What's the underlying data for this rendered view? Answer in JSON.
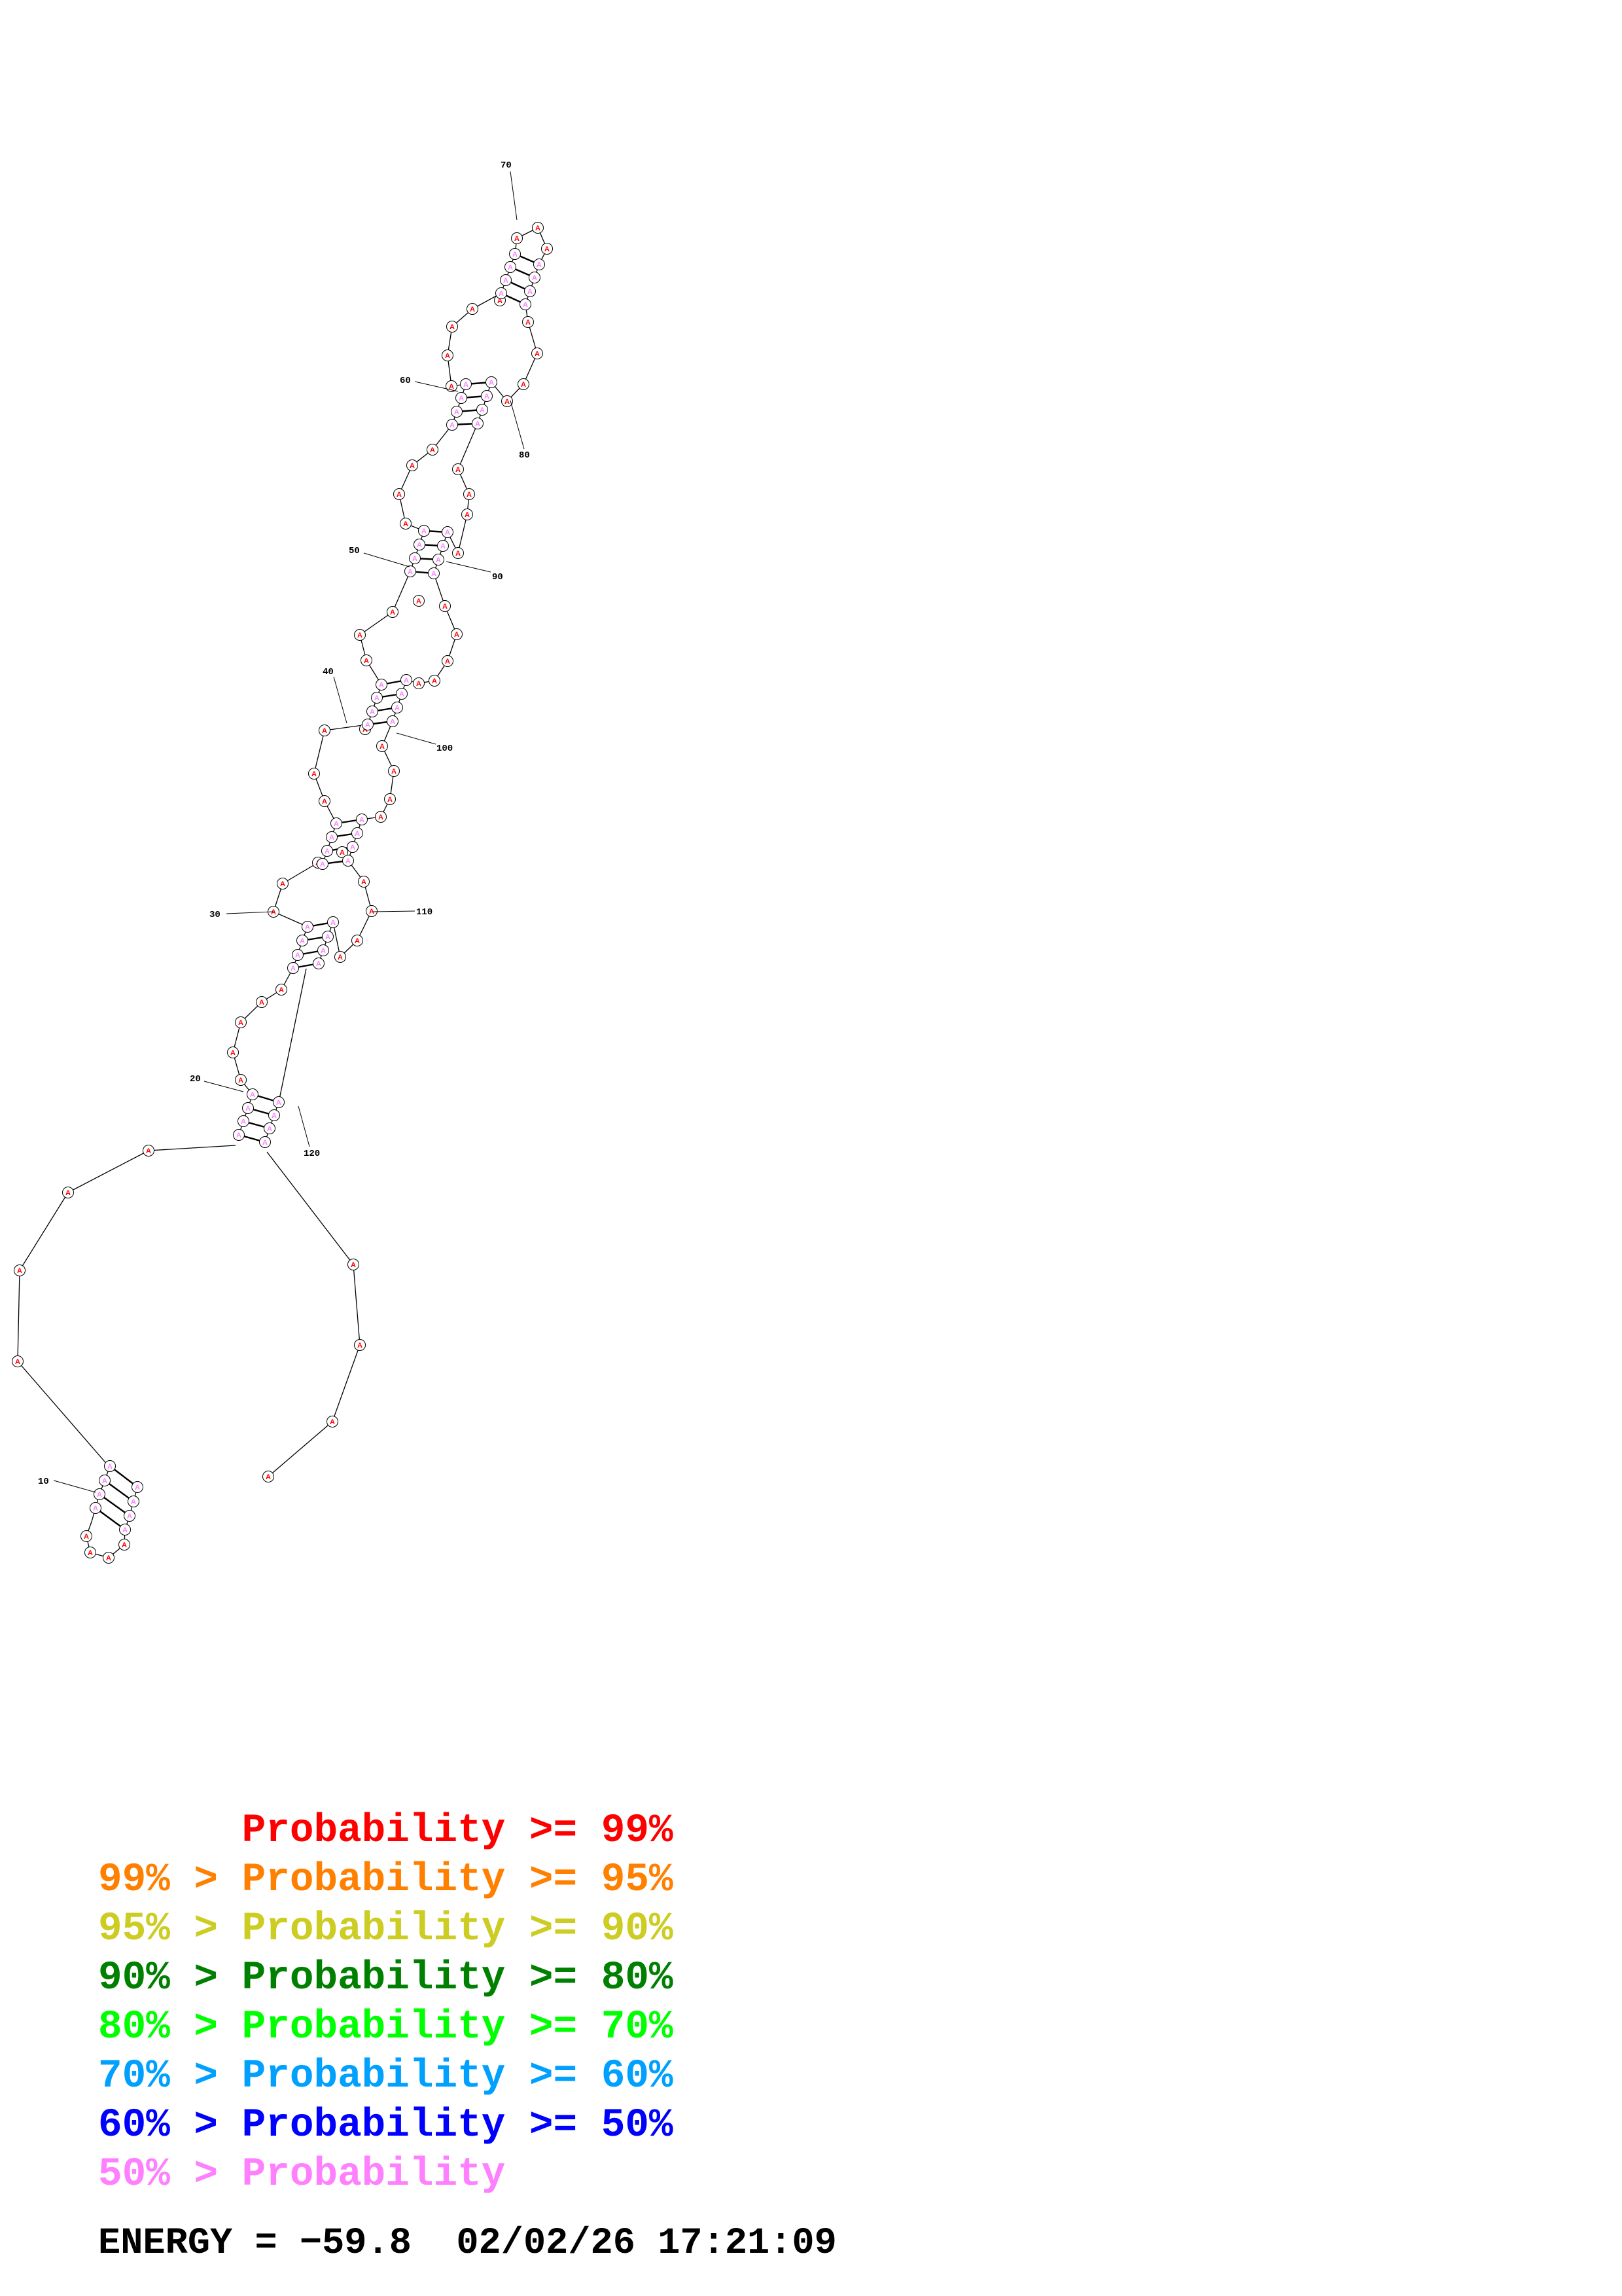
{
  "structure": {
    "nucleotide_letter": "A",
    "unpaired_color": "#ff0000",
    "paired_color": "#ff80ff",
    "position_labels": [
      "10",
      "20",
      "30",
      "40",
      "50",
      "60",
      "70",
      "80",
      "90",
      "100",
      "110",
      "120"
    ]
  },
  "legend": [
    {
      "prefix": "",
      "text": "Probability >= 99%",
      "color": "#ff0000"
    },
    {
      "prefix": "99% > ",
      "text": "Probability >= 95%",
      "color": "#ff8000"
    },
    {
      "prefix": "95% > ",
      "text": "Probability >= 90%",
      "color": "#cccc22"
    },
    {
      "prefix": "90% > ",
      "text": "Probability >= 80%",
      "color": "#008000"
    },
    {
      "prefix": "80% > ",
      "text": "Probability >= 70%",
      "color": "#00ff00"
    },
    {
      "prefix": "70% > ",
      "text": "Probability >= 60%",
      "color": "#00a0ff"
    },
    {
      "prefix": "60% > ",
      "text": "Probability >= 50%",
      "color": "#0000ff"
    },
    {
      "prefix": "50% > ",
      "text": "Probability",
      "color": "#ff80ff"
    }
  ],
  "footer": {
    "energy_label": "ENERGY =",
    "energy_value": "−59.8",
    "date": "02/02/26",
    "time": "17:21:09"
  }
}
